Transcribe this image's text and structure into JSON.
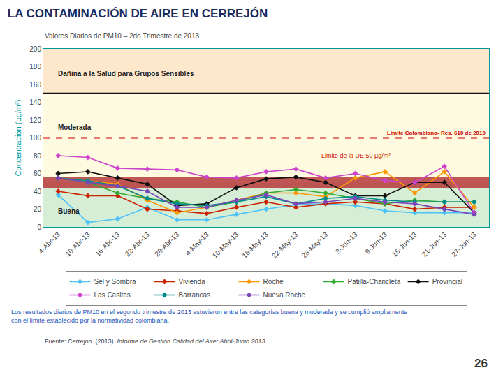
{
  "chart_data": {
    "type": "line",
    "title": "LA CONTAMINACIÓN DE AIRE EN CERREJÓN",
    "subtitle": "Valores Diarios de PM10 – 2do Trimestre de 2013",
    "y_label": "Concentración (µg/m³)",
    "y_label_color": "#009999",
    "title_color": "#1a2b5e",
    "subtitle_color": "#444444",
    "background_color": "#ffffff",
    "categories": [
      "4-Abr-13",
      "10-Abr-13",
      "16-Abr-13",
      "22-Abr-13",
      "28-Abr-13",
      "4-May-13",
      "10-May-13",
      "16-May-13",
      "22-May-13",
      "28-May-13",
      "3-Jun-13",
      "9-Jun-13",
      "15-Jun-13",
      "21-Jun-13",
      "27-Jun-13"
    ],
    "series": [
      {
        "name": "Sel y Sombra",
        "color": "#4fc3f7",
        "marker": "diamond",
        "values": [
          36,
          5,
          9,
          22,
          8,
          8,
          14,
          20,
          25,
          26,
          24,
          18,
          16,
          16,
          16
        ]
      },
      {
        "name": "Vivienda",
        "color": "#cc2200",
        "marker": "diamond",
        "values": [
          40,
          35,
          35,
          20,
          18,
          15,
          22,
          28,
          22,
          26,
          28,
          26,
          20,
          22,
          22
        ]
      },
      {
        "name": "Roche",
        "color": "#ff9900",
        "marker": "diamond",
        "values": [
          55,
          52,
          48,
          30,
          16,
          22,
          30,
          38,
          38,
          34,
          55,
          62,
          38,
          62,
          22
        ]
      },
      {
        "name": "Patilla-Chancleta",
        "color": "#33aa33",
        "marker": "diamond",
        "values": [
          55,
          50,
          38,
          32,
          28,
          22,
          28,
          38,
          42,
          38,
          32,
          26,
          30,
          28,
          28
        ]
      },
      {
        "name": "Provincial",
        "color": "#111111",
        "marker": "diamond",
        "values": [
          60,
          62,
          55,
          48,
          24,
          26,
          44,
          54,
          56,
          50,
          35,
          35,
          50,
          50,
          16
        ]
      },
      {
        "name": "Las Casitas",
        "color": "#cc44cc",
        "marker": "diamond",
        "values": [
          80,
          78,
          66,
          65,
          64,
          56,
          55,
          62,
          65,
          55,
          60,
          52,
          50,
          68,
          16
        ]
      },
      {
        "name": "Barrancas",
        "color": "#008b8b",
        "marker": "diamond",
        "values": [
          55,
          52,
          46,
          32,
          26,
          24,
          28,
          34,
          26,
          32,
          34,
          30,
          28,
          28,
          28
        ]
      },
      {
        "name": "Nueva Roche",
        "color": "#7b44bb",
        "marker": "diamond",
        "values": [
          55,
          50,
          46,
          40,
          22,
          22,
          30,
          36,
          26,
          28,
          32,
          28,
          26,
          20,
          14
        ]
      }
    ],
    "ylim": [
      0,
      200
    ],
    "yticks": [
      0,
      20,
      40,
      60,
      80,
      100,
      120,
      140,
      160,
      180,
      200
    ],
    "grid": false,
    "legend": "bottom",
    "zones": [
      {
        "label": "Buena",
        "from": 0,
        "to": 50,
        "color": "#d6edd6"
      },
      {
        "label": "Moderada",
        "from": 50,
        "to": 150,
        "color": "#fffbe0"
      },
      {
        "label": "Dañina a la Salud para Grupos Sensibles",
        "from": 150,
        "to": 200,
        "color": "#fde8cc"
      }
    ],
    "zone_borders": [
      {
        "value": 150,
        "color": "#111111"
      }
    ],
    "reference_bands": [
      {
        "from": 44,
        "to": 56,
        "color": "#b84040",
        "label": "Limite de la UE 50 µg/m²",
        "label_color": "#cc2200"
      }
    ],
    "reference_lines": [
      {
        "value": 100,
        "color": "#cc0000",
        "line_style": "dashed",
        "label": "Límite Colombiano- Res. 610 de 2010"
      }
    ],
    "footnote": "Los resultados diarios de PM10 en el segundo trimestre de 2013 estuvieron entre las categorías buena y moderada y se cumplió ampliamente\ncon el límite establecido por la normatividad colombiana.",
    "footnote_color": "#2255bb",
    "source": "Fuente: Cerrejon. (2013). ",
    "source_italic": "Informe de Gestión Calidad del Aire: Abril-Junio 2013",
    "page_number": "26"
  }
}
